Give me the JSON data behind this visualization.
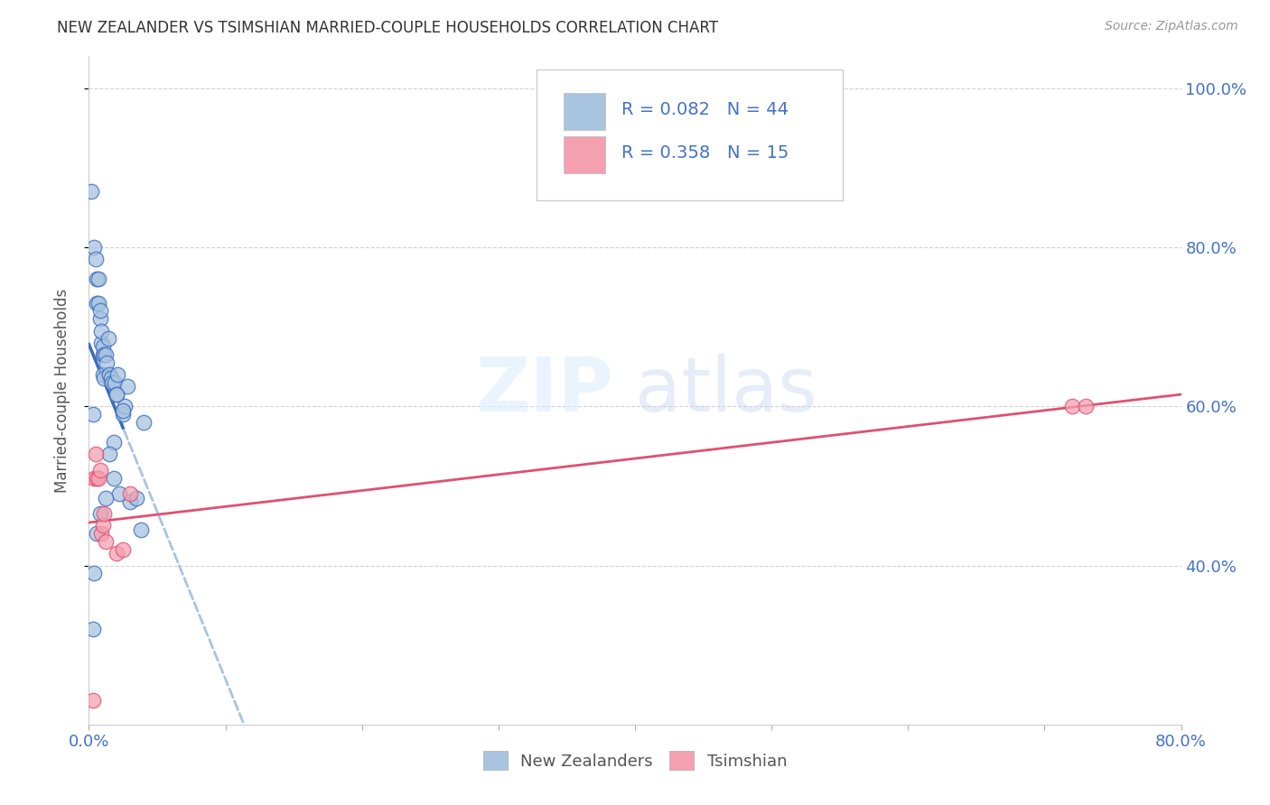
{
  "title": "NEW ZEALANDER VS TSIMSHIAN MARRIED-COUPLE HOUSEHOLDS CORRELATION CHART",
  "source": "Source: ZipAtlas.com",
  "ylabel": "Married-couple Households",
  "xlim": [
    0.0,
    0.8
  ],
  "ylim": [
    0.2,
    1.04
  ],
  "xticks": [
    0.0,
    0.1,
    0.2,
    0.3,
    0.4,
    0.5,
    0.6,
    0.7,
    0.8
  ],
  "xticklabels": [
    "0.0%",
    "",
    "",
    "",
    "",
    "",
    "",
    "",
    "80.0%"
  ],
  "yticks": [
    0.4,
    0.6,
    0.8,
    1.0
  ],
  "yticklabels": [
    "40.0%",
    "60.0%",
    "80.0%",
    "100.0%"
  ],
  "blue_R": "0.082",
  "blue_N": "44",
  "pink_R": "0.358",
  "pink_N": "15",
  "blue_color": "#a8c4e0",
  "blue_line_color": "#3a6bbf",
  "blue_dashed_color": "#a8c4e0",
  "pink_color": "#f4a0b0",
  "pink_line_color": "#e05070",
  "watermark_zip": "ZIP",
  "watermark_atlas": "atlas",
  "blue_x": [
    0.002,
    0.003,
    0.004,
    0.005,
    0.006,
    0.006,
    0.007,
    0.007,
    0.008,
    0.008,
    0.009,
    0.009,
    0.01,
    0.01,
    0.01,
    0.011,
    0.011,
    0.012,
    0.013,
    0.014,
    0.015,
    0.016,
    0.017,
    0.018,
    0.019,
    0.02,
    0.021,
    0.025,
    0.026,
    0.028,
    0.03,
    0.035,
    0.038,
    0.04,
    0.02,
    0.015,
    0.025,
    0.022,
    0.018,
    0.012,
    0.008,
    0.006,
    0.004,
    0.003
  ],
  "blue_y": [
    0.87,
    0.59,
    0.8,
    0.785,
    0.73,
    0.76,
    0.73,
    0.76,
    0.71,
    0.72,
    0.68,
    0.695,
    0.665,
    0.675,
    0.64,
    0.635,
    0.665,
    0.665,
    0.655,
    0.685,
    0.64,
    0.635,
    0.63,
    0.555,
    0.63,
    0.615,
    0.64,
    0.59,
    0.6,
    0.625,
    0.48,
    0.485,
    0.445,
    0.58,
    0.615,
    0.54,
    0.595,
    0.49,
    0.51,
    0.485,
    0.465,
    0.44,
    0.39,
    0.32
  ],
  "pink_x": [
    0.003,
    0.004,
    0.005,
    0.006,
    0.007,
    0.008,
    0.009,
    0.01,
    0.011,
    0.012,
    0.02,
    0.025,
    0.03,
    0.72,
    0.73
  ],
  "pink_y": [
    0.23,
    0.51,
    0.54,
    0.51,
    0.51,
    0.52,
    0.44,
    0.45,
    0.465,
    0.43,
    0.415,
    0.42,
    0.49,
    0.6,
    0.6
  ],
  "grid_color": "#cccccc",
  "background_color": "#ffffff",
  "legend_blue_label": "New Zealanders",
  "legend_pink_label": "Tsimshian"
}
